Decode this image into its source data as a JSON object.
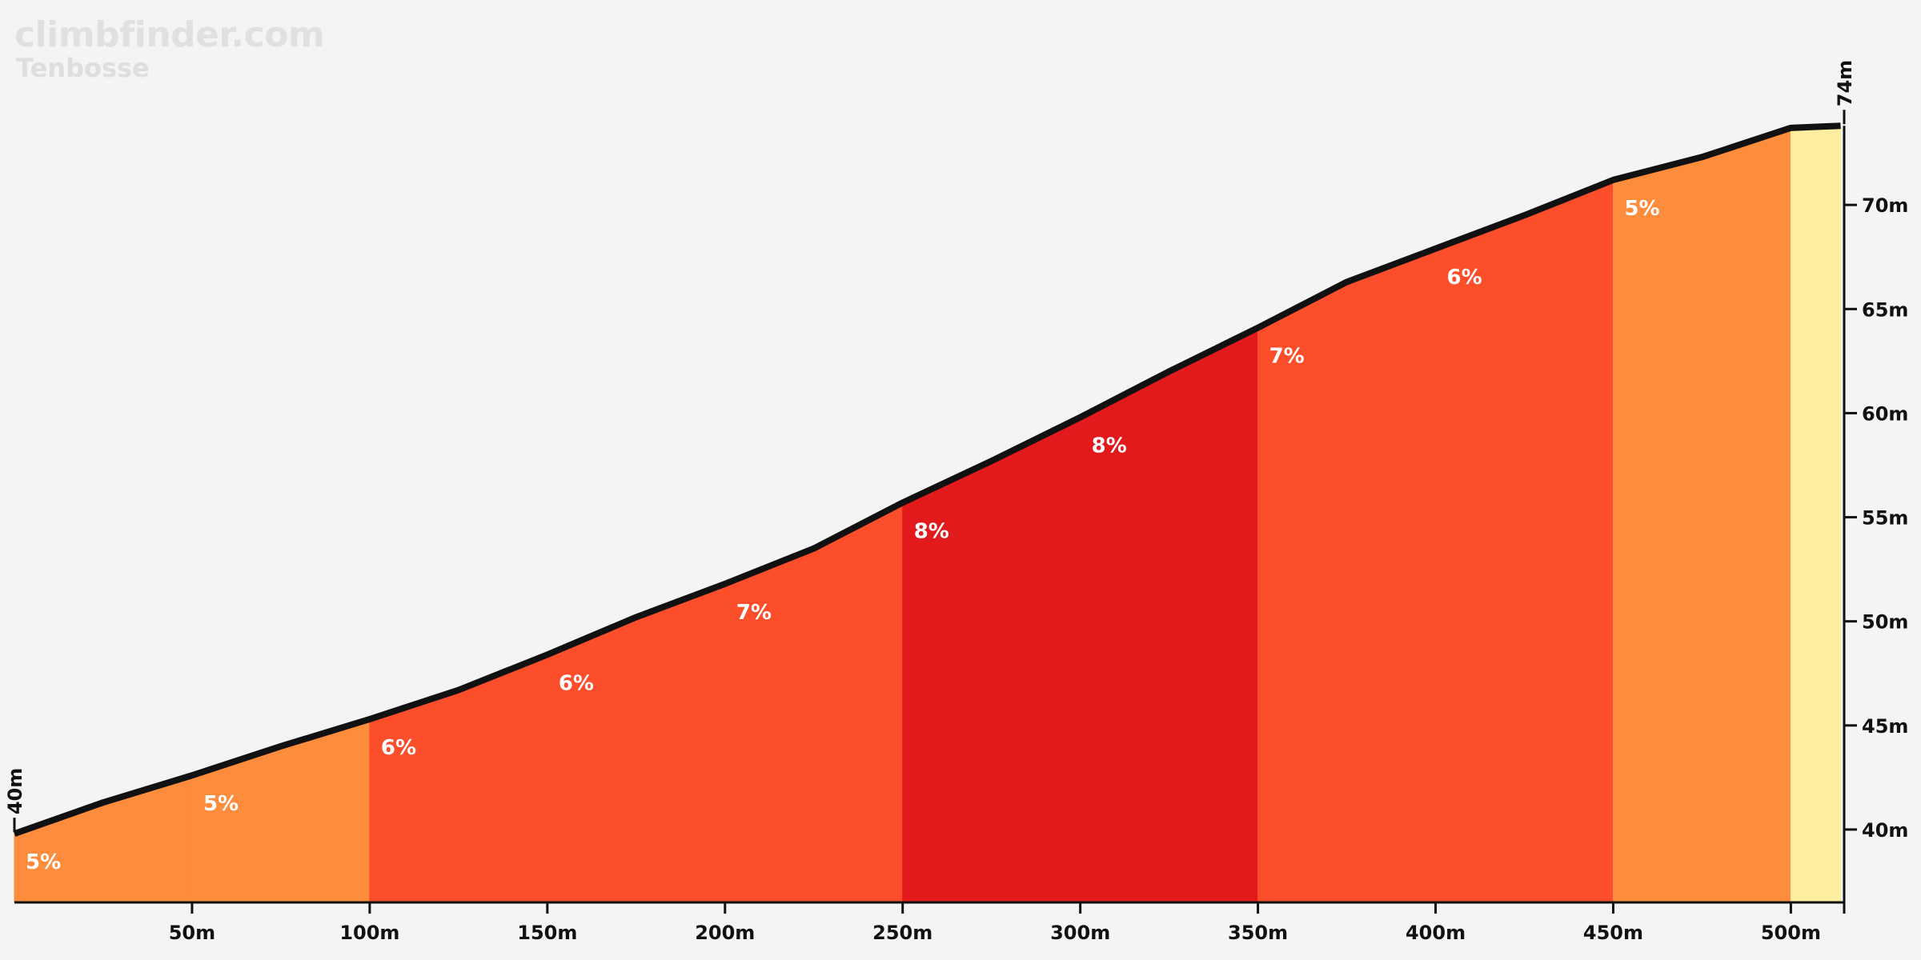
{
  "header": {
    "site": "climbfinder.com",
    "climb_name": "Tenbosse"
  },
  "chart_data": {
    "type": "area",
    "title": "Tenbosse",
    "xlabel": "",
    "ylabel": "",
    "x_unit": "m",
    "y_unit": "m",
    "xlim": [
      0,
      515
    ],
    "ylim": [
      36.5,
      76
    ],
    "x_ticks": [
      50,
      100,
      150,
      200,
      250,
      300,
      350,
      400,
      450,
      500
    ],
    "x_tick_labels": [
      "50m",
      "100m",
      "150m",
      "200m",
      "250m",
      "300m",
      "350m",
      "400m",
      "450m",
      "500m"
    ],
    "y_ticks": [
      40,
      45,
      50,
      55,
      60,
      65,
      70
    ],
    "y_tick_labels": [
      "40m",
      "45m",
      "50m",
      "55m",
      "60m",
      "65m",
      "70m"
    ],
    "start_label": "40m",
    "end_label": "74m",
    "profile": [
      {
        "x": 0,
        "y": 39.8
      },
      {
        "x": 25,
        "y": 41.3
      },
      {
        "x": 50,
        "y": 42.6
      },
      {
        "x": 75,
        "y": 44.0
      },
      {
        "x": 100,
        "y": 45.3
      },
      {
        "x": 125,
        "y": 46.7
      },
      {
        "x": 150,
        "y": 48.4
      },
      {
        "x": 175,
        "y": 50.2
      },
      {
        "x": 200,
        "y": 51.8
      },
      {
        "x": 225,
        "y": 53.5
      },
      {
        "x": 250,
        "y": 55.7
      },
      {
        "x": 275,
        "y": 57.7
      },
      {
        "x": 300,
        "y": 59.8
      },
      {
        "x": 325,
        "y": 62.0
      },
      {
        "x": 350,
        "y": 64.1
      },
      {
        "x": 375,
        "y": 66.3
      },
      {
        "x": 400,
        "y": 67.9
      },
      {
        "x": 425,
        "y": 69.5
      },
      {
        "x": 450,
        "y": 71.2
      },
      {
        "x": 475,
        "y": 72.3
      },
      {
        "x": 500,
        "y": 73.7
      },
      {
        "x": 514,
        "y": 73.8
      }
    ],
    "segments": [
      {
        "x0": 0,
        "x1": 50,
        "grade": "5%",
        "color": "#fd8c3c"
      },
      {
        "x0": 50,
        "x1": 100,
        "grade": "5%",
        "color": "#fd8c3c"
      },
      {
        "x0": 100,
        "x1": 150,
        "grade": "6%",
        "color": "#fc4e2a"
      },
      {
        "x0": 150,
        "x1": 200,
        "grade": "6%",
        "color": "#fc4e2a"
      },
      {
        "x0": 200,
        "x1": 250,
        "grade": "7%",
        "color": "#fc4e2a"
      },
      {
        "x0": 250,
        "x1": 300,
        "grade": "8%",
        "color": "#e31a1c"
      },
      {
        "x0": 300,
        "x1": 350,
        "grade": "8%",
        "color": "#e31a1c"
      },
      {
        "x0": 350,
        "x1": 400,
        "grade": "7%",
        "color": "#fc4e2a"
      },
      {
        "x0": 400,
        "x1": 450,
        "grade": "6%",
        "color": "#fc4e2a"
      },
      {
        "x0": 450,
        "x1": 500,
        "grade": "5%",
        "color": "#fd8c3c"
      },
      {
        "x0": 500,
        "x1": 514,
        "grade": "",
        "color": "#ffeda0"
      }
    ],
    "grid": false,
    "legend": "none",
    "colors": {
      "background": "#f4f4f4",
      "outline": "#111111",
      "label_text": "#ffffff",
      "brand_text": "#e0e0e0"
    }
  }
}
